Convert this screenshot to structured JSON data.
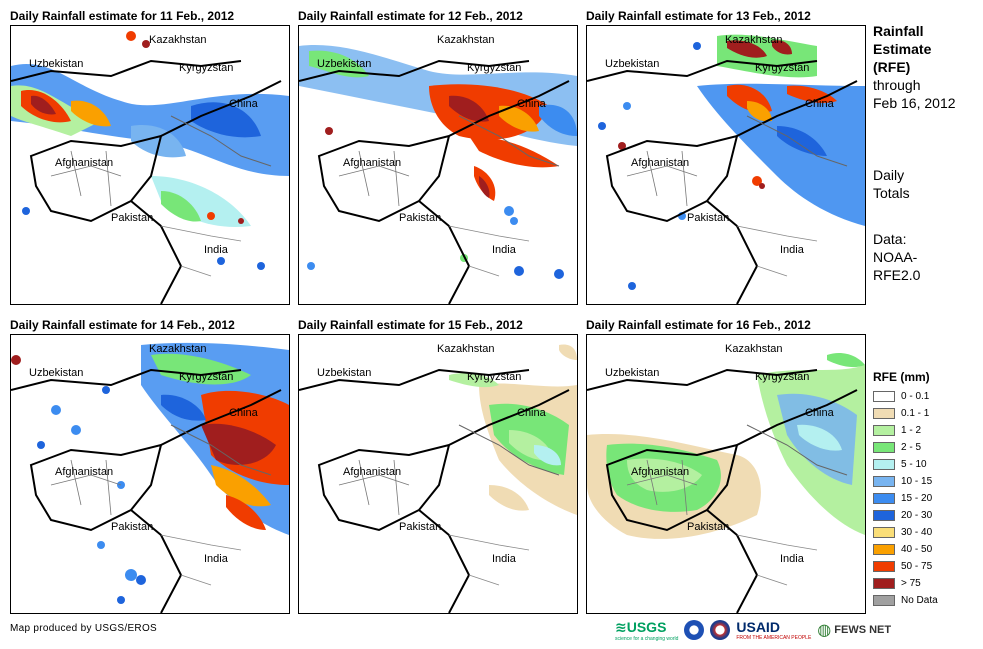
{
  "panels": [
    {
      "title": "Daily Rainfall estimate for 11 Feb., 2012"
    },
    {
      "title": "Daily Rainfall estimate for 12 Feb., 2012"
    },
    {
      "title": "Daily Rainfall estimate for 13 Feb., 2012"
    },
    {
      "title": "Daily Rainfall estimate for 14 Feb., 2012"
    },
    {
      "title": "Daily Rainfall estimate for 15 Feb., 2012"
    },
    {
      "title": "Daily Rainfall estimate for 16 Feb., 2012"
    }
  ],
  "countries": {
    "kazakhstan": "Kazakhstan",
    "kyrgyzstan": "Kyrgyzstan",
    "uzbekistan": "Uzbekistan",
    "china": "China",
    "afghanistan": "Afghanistan",
    "pakistan": "Pakistan",
    "india": "India"
  },
  "sidebar": {
    "line1": "Rainfall",
    "line2": "Estimate",
    "line3": "(RFE)",
    "line4": "through",
    "line5": "Feb 16, 2012",
    "daily1": "Daily",
    "daily2": "Totals",
    "data1": "Data:",
    "data2": "NOAA-",
    "data3": "RFE2.0"
  },
  "legend": {
    "title": "RFE (mm)",
    "items": [
      {
        "label": "0 - 0.1",
        "color": "#ffffff"
      },
      {
        "label": "0.1 - 1",
        "color": "#f0dcb4"
      },
      {
        "label": "1 - 2",
        "color": "#b4f0a0"
      },
      {
        "label": "2 - 5",
        "color": "#78e678"
      },
      {
        "label": "5 - 10",
        "color": "#b4f0f0"
      },
      {
        "label": "10 - 15",
        "color": "#78b4f0"
      },
      {
        "label": "15 - 20",
        "color": "#3c8cf0"
      },
      {
        "label": "20 - 30",
        "color": "#1e64dc"
      },
      {
        "label": "30 - 40",
        "color": "#fade78"
      },
      {
        "label": "40 - 50",
        "color": "#faa000"
      },
      {
        "label": "50 - 75",
        "color": "#f03c00"
      },
      {
        "label": "> 75",
        "color": "#a01e1e"
      },
      {
        "label": "No Data",
        "color": "#a0a0a0"
      }
    ]
  },
  "footer": {
    "credit": "Map produced by USGS/EROS",
    "logo_usgs": "USGS",
    "logo_usgs_sub": "science for a changing world",
    "logo_usaid": "USAID",
    "logo_usaid_sub": "FROM THE AMERICAN PEOPLE",
    "logo_fews": "FEWS NET"
  }
}
